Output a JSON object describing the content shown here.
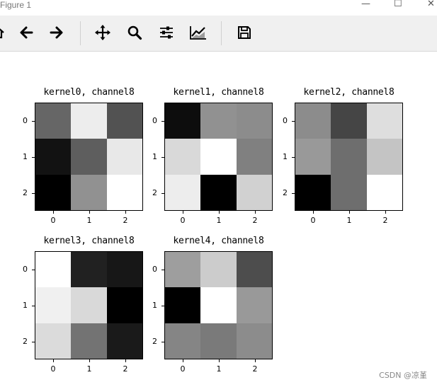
{
  "window": {
    "title": "Figure 1",
    "minimize_glyph": "—",
    "maximize_glyph": "☐",
    "close_glyph": "✕"
  },
  "toolbar": {
    "buttons": [
      {
        "name": "home-icon"
      },
      {
        "name": "back-icon"
      },
      {
        "name": "forward-icon"
      },
      {
        "name": "pan-icon"
      },
      {
        "name": "zoom-icon"
      },
      {
        "name": "configure-subplots-icon"
      },
      {
        "name": "edit-axis-icon"
      },
      {
        "name": "save-icon"
      }
    ]
  },
  "chart_data": [
    {
      "type": "heatmap",
      "title": "kernel0, channel8",
      "colormap": "gray",
      "x": [
        "0",
        "1",
        "2"
      ],
      "y": [
        "0",
        "1",
        "2"
      ],
      "values": [
        [
          0.4,
          0.93,
          0.32
        ],
        [
          0.07,
          0.37,
          0.91
        ],
        [
          0.0,
          0.57,
          1.0
        ]
      ]
    },
    {
      "type": "heatmap",
      "title": "kernel1, channel8",
      "colormap": "gray",
      "x": [
        "0",
        "1",
        "2"
      ],
      "y": [
        "0",
        "1",
        "2"
      ],
      "values": [
        [
          0.05,
          0.57,
          0.55
        ],
        [
          0.85,
          1.0,
          0.5
        ],
        [
          0.93,
          0.0,
          0.82
        ]
      ]
    },
    {
      "type": "heatmap",
      "title": "kernel2, channel8",
      "colormap": "gray",
      "x": [
        "0",
        "1",
        "2"
      ],
      "y": [
        "0",
        "1",
        "2"
      ],
      "values": [
        [
          0.55,
          0.27,
          0.87
        ],
        [
          0.6,
          0.43,
          0.77
        ],
        [
          0.0,
          0.43,
          1.0
        ]
      ]
    },
    {
      "type": "heatmap",
      "title": "kernel3, channel8",
      "colormap": "gray",
      "x": [
        "0",
        "1",
        "2"
      ],
      "y": [
        "0",
        "1",
        "2"
      ],
      "values": [
        [
          1.0,
          0.13,
          0.09
        ],
        [
          0.94,
          0.85,
          0.0
        ],
        [
          0.86,
          0.45,
          0.1
        ]
      ]
    },
    {
      "type": "heatmap",
      "title": "kernel4, channel8",
      "colormap": "gray",
      "x": [
        "0",
        "1",
        "2"
      ],
      "y": [
        "0",
        "1",
        "2"
      ],
      "values": [
        [
          0.62,
          0.8,
          0.3
        ],
        [
          0.0,
          1.0,
          0.6
        ],
        [
          0.52,
          0.48,
          0.55
        ]
      ]
    }
  ],
  "watermark": "CSDN @凉堇"
}
